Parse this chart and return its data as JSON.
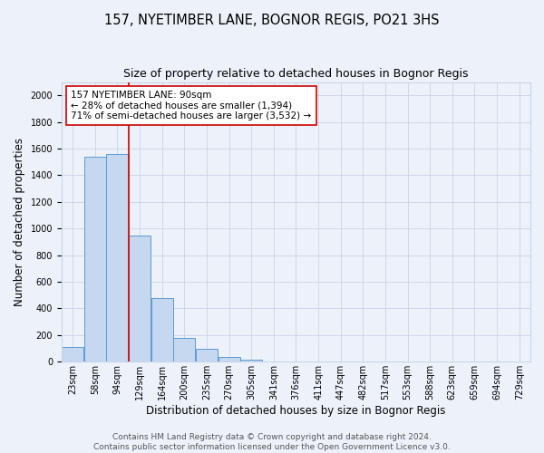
{
  "title": "157, NYETIMBER LANE, BOGNOR REGIS, PO21 3HS",
  "subtitle": "Size of property relative to detached houses in Bognor Regis",
  "xlabel": "Distribution of detached houses by size in Bognor Regis",
  "ylabel": "Number of detached properties",
  "bin_labels": [
    "23sqm",
    "58sqm",
    "94sqm",
    "129sqm",
    "164sqm",
    "200sqm",
    "235sqm",
    "270sqm",
    "305sqm",
    "341sqm",
    "376sqm",
    "411sqm",
    "447sqm",
    "482sqm",
    "517sqm",
    "553sqm",
    "588sqm",
    "623sqm",
    "659sqm",
    "694sqm",
    "729sqm"
  ],
  "bar_values": [
    110,
    1540,
    1560,
    950,
    480,
    180,
    95,
    35,
    15,
    0,
    0,
    0,
    0,
    0,
    0,
    0,
    0,
    0,
    0,
    0,
    0
  ],
  "bar_color": "#c5d8f0",
  "bar_edgecolor": "#5b9bd5",
  "red_line_bin": 2,
  "annotation_line1": "157 NYETIMBER LANE: 90sqm",
  "annotation_line2": "← 28% of detached houses are smaller (1,394)",
  "annotation_line3": "71% of semi-detached houses are larger (3,532) →",
  "annotation_box_edgecolor": "#cc0000",
  "annotation_box_facecolor": "#ffffff",
  "ylim": [
    0,
    2100
  ],
  "yticks": [
    0,
    200,
    400,
    600,
    800,
    1000,
    1200,
    1400,
    1600,
    1800,
    2000
  ],
  "footer_line1": "Contains HM Land Registry data © Crown copyright and database right 2024.",
  "footer_line2": "Contains public sector information licensed under the Open Government Licence v3.0.",
  "bg_color": "#edf2fa",
  "plot_bg_color": "#edf2fa",
  "grid_color": "#c8d4e8",
  "title_fontsize": 10.5,
  "subtitle_fontsize": 9,
  "axis_label_fontsize": 8.5,
  "tick_fontsize": 7,
  "annotation_fontsize": 7.5,
  "footer_fontsize": 6.5
}
